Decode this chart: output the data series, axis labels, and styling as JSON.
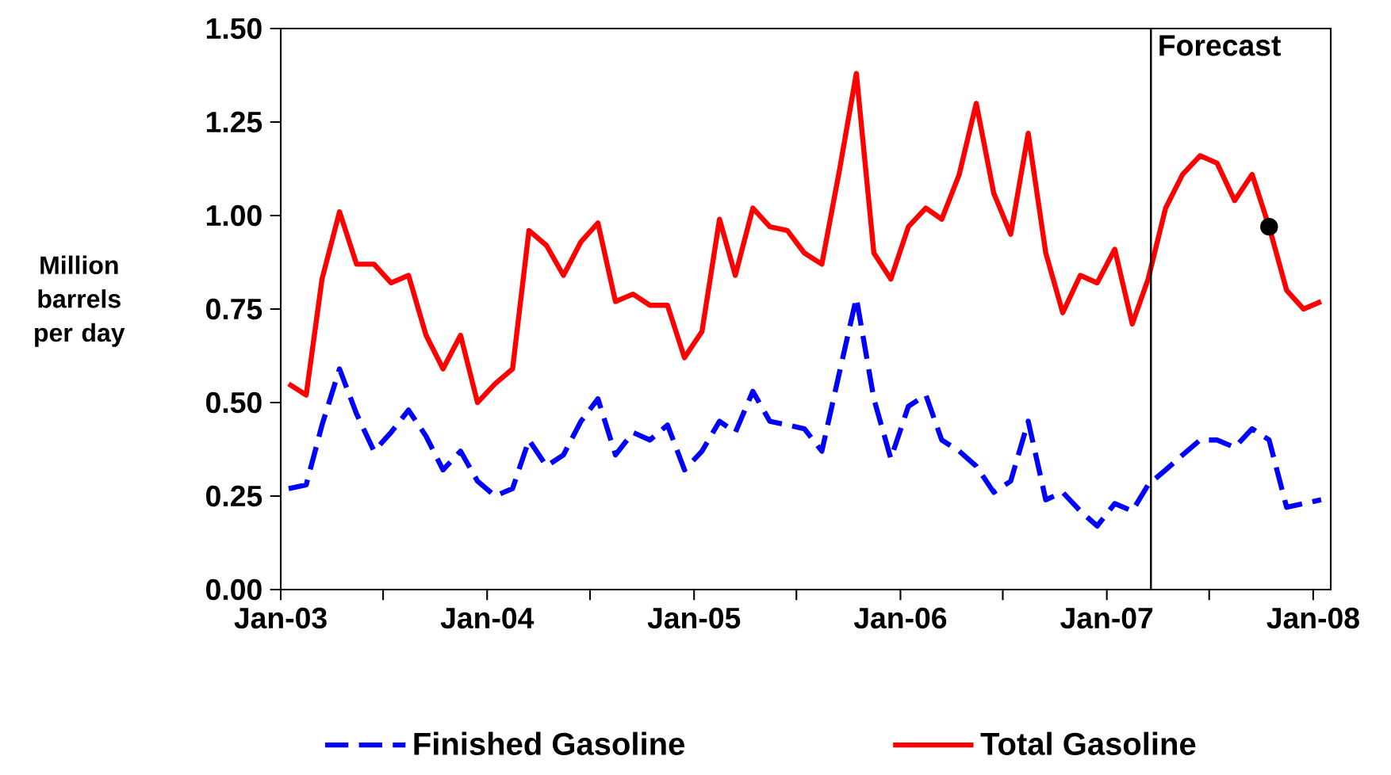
{
  "chart_data": {
    "type": "line",
    "ylabel": "Million barrels per day",
    "x": [
      "2003-01-15",
      "2003-02-15",
      "2003-03-15",
      "2003-04-15",
      "2003-05-15",
      "2003-06-15",
      "2003-07-15",
      "2003-08-15",
      "2003-09-15",
      "2003-10-15",
      "2003-11-15",
      "2003-12-15",
      "2004-01-15",
      "2004-02-15",
      "2004-03-15",
      "2004-04-15",
      "2004-05-15",
      "2004-06-15",
      "2004-07-15",
      "2004-08-15",
      "2004-09-15",
      "2004-10-15",
      "2004-11-15",
      "2004-12-15",
      "2005-01-15",
      "2005-02-15",
      "2005-03-15",
      "2005-04-15",
      "2005-05-15",
      "2005-06-15",
      "2005-07-15",
      "2005-08-15",
      "2005-09-15",
      "2005-10-15",
      "2005-11-15",
      "2005-12-15",
      "2006-01-15",
      "2006-02-15",
      "2006-03-15",
      "2006-04-15",
      "2006-05-15",
      "2006-06-15",
      "2006-07-15",
      "2006-08-15",
      "2006-09-15",
      "2006-10-15",
      "2006-11-15",
      "2006-12-15",
      "2007-01-15",
      "2007-02-15",
      "2007-03-15",
      "2007-04-15",
      "2007-05-15",
      "2007-06-15",
      "2007-07-15",
      "2007-08-15",
      "2007-09-15",
      "2007-10-15",
      "2007-11-15",
      "2007-12-15",
      "2008-01-15"
    ],
    "series": [
      {
        "name": "Finished Gasoline",
        "color": "#0000ff",
        "line_style": "dashed",
        "values": [
          0.27,
          0.28,
          0.44,
          0.59,
          0.47,
          0.37,
          0.42,
          0.48,
          0.41,
          0.32,
          0.37,
          0.29,
          0.25,
          0.27,
          0.4,
          0.33,
          0.36,
          0.45,
          0.51,
          0.36,
          0.42,
          0.4,
          0.44,
          0.32,
          0.37,
          0.45,
          0.42,
          0.53,
          0.45,
          0.44,
          0.43,
          0.37,
          0.58,
          0.78,
          0.51,
          0.35,
          0.49,
          0.52,
          0.4,
          0.37,
          0.33,
          0.26,
          0.29,
          0.45,
          0.24,
          0.26,
          0.21,
          0.17,
          0.23,
          0.21,
          0.28,
          0.32,
          0.36,
          0.4,
          0.4,
          0.38,
          0.43,
          0.4,
          0.22,
          0.23,
          0.24
        ]
      },
      {
        "name": "Total Gasoline",
        "color": "#ff0000",
        "line_style": "solid",
        "values": [
          0.55,
          0.52,
          0.83,
          1.01,
          0.87,
          0.87,
          0.82,
          0.84,
          0.68,
          0.59,
          0.68,
          0.5,
          0.55,
          0.59,
          0.96,
          0.92,
          0.84,
          0.93,
          0.98,
          0.77,
          0.79,
          0.76,
          0.76,
          0.62,
          0.69,
          0.99,
          0.84,
          1.02,
          0.97,
          0.96,
          0.9,
          0.87,
          1.12,
          1.38,
          0.9,
          0.83,
          0.97,
          1.02,
          0.99,
          1.11,
          1.3,
          1.06,
          0.95,
          1.22,
          0.9,
          0.74,
          0.84,
          0.82,
          0.91,
          0.71,
          0.83,
          1.02,
          1.11,
          1.16,
          1.14,
          1.04,
          1.11,
          0.97,
          0.8,
          0.75,
          0.77
        ]
      },
      {
        "type": "scatter",
        "marker": "circle",
        "color": "#000000",
        "x": [
          "2007-10-15"
        ],
        "values": [
          0.97
        ]
      }
    ],
    "xlim": [
      "2003-01-01",
      "2008-02-01"
    ],
    "xticks": [
      {
        "value": "2003-01-01",
        "label": "Jan-03"
      },
      {
        "value": "2003-07-01",
        "label": null
      },
      {
        "value": "2004-01-01",
        "label": "Jan-04"
      },
      {
        "value": "2004-07-01",
        "label": null
      },
      {
        "value": "2005-01-01",
        "label": "Jan-05"
      },
      {
        "value": "2005-07-01",
        "label": null
      },
      {
        "value": "2006-01-01",
        "label": "Jan-06"
      },
      {
        "value": "2006-07-01",
        "label": null
      },
      {
        "value": "2007-01-01",
        "label": "Jan-07"
      },
      {
        "value": "2007-07-01",
        "label": null
      },
      {
        "value": "2008-01-01",
        "label": "Jan-08"
      }
    ],
    "ylim": [
      0,
      1.5
    ],
    "yticks": [
      {
        "value": 0,
        "label": "0.00"
      },
      {
        "value": 0.25,
        "label": "0.25"
      },
      {
        "value": 0.5,
        "label": "0.50"
      },
      {
        "value": 0.75,
        "label": "0.75"
      },
      {
        "value": 1,
        "label": "1.00"
      },
      {
        "value": 1.25,
        "label": "1.25"
      },
      {
        "value": 1.5,
        "label": "1.50"
      }
    ],
    "ref_lines": [
      {
        "axis": "x",
        "value": "2007-03-20",
        "label": "Forecast",
        "color": "#000000"
      }
    ],
    "legend": "bottom",
    "marker": "none",
    "grid": false
  }
}
